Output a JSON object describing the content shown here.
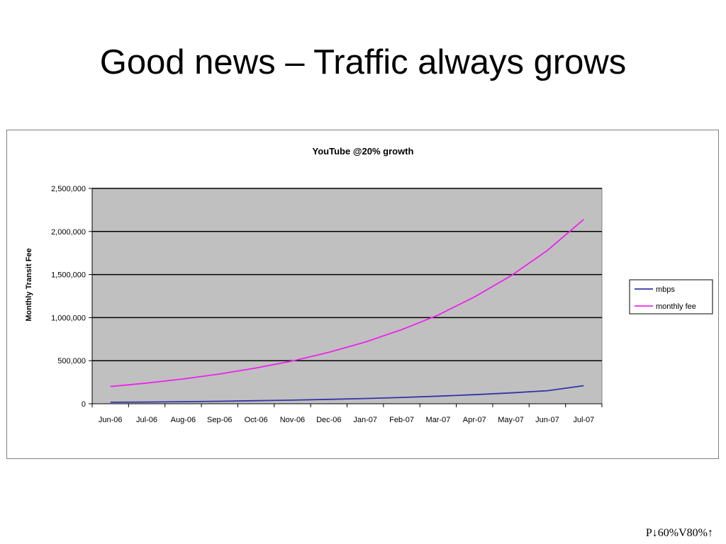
{
  "slide": {
    "title": "Good news – Traffic always grows",
    "footer": "P↓60%V80%↑"
  },
  "chart_data": {
    "type": "line",
    "title": "YouTube @20% growth",
    "xlabel": "",
    "ylabel": "Monthly Transit Fee",
    "categories": [
      "Jun-06",
      "Jul-06",
      "Aug-06",
      "Sep-06",
      "Oct-06",
      "Nov-06",
      "Dec-06",
      "Jan-07",
      "Feb-07",
      "Mar-07",
      "Apr-07",
      "May-07",
      "Jun-07",
      "Jul-07"
    ],
    "yticks": [
      "0",
      "500,000",
      "1,000,000",
      "1,500,000",
      "2,000,000",
      "2,500,000"
    ],
    "ylim": [
      0,
      2500000
    ],
    "grid": true,
    "legend_position": "right",
    "plot_background": "#c0c0c0",
    "series": [
      {
        "name": "mbps",
        "color": "#3333aa",
        "values": [
          17000,
          20000,
          24000,
          29000,
          35000,
          42000,
          51000,
          61000,
          73000,
          88000,
          105000,
          126000,
          151000,
          210000
        ]
      },
      {
        "name": "monthly fee",
        "color": "#ee22ee",
        "values": [
          200000,
          240000,
          288000,
          345000,
          415000,
          497000,
          597000,
          716000,
          860000,
          1030000,
          1240000,
          1485000,
          1780000,
          2140000
        ]
      }
    ]
  }
}
